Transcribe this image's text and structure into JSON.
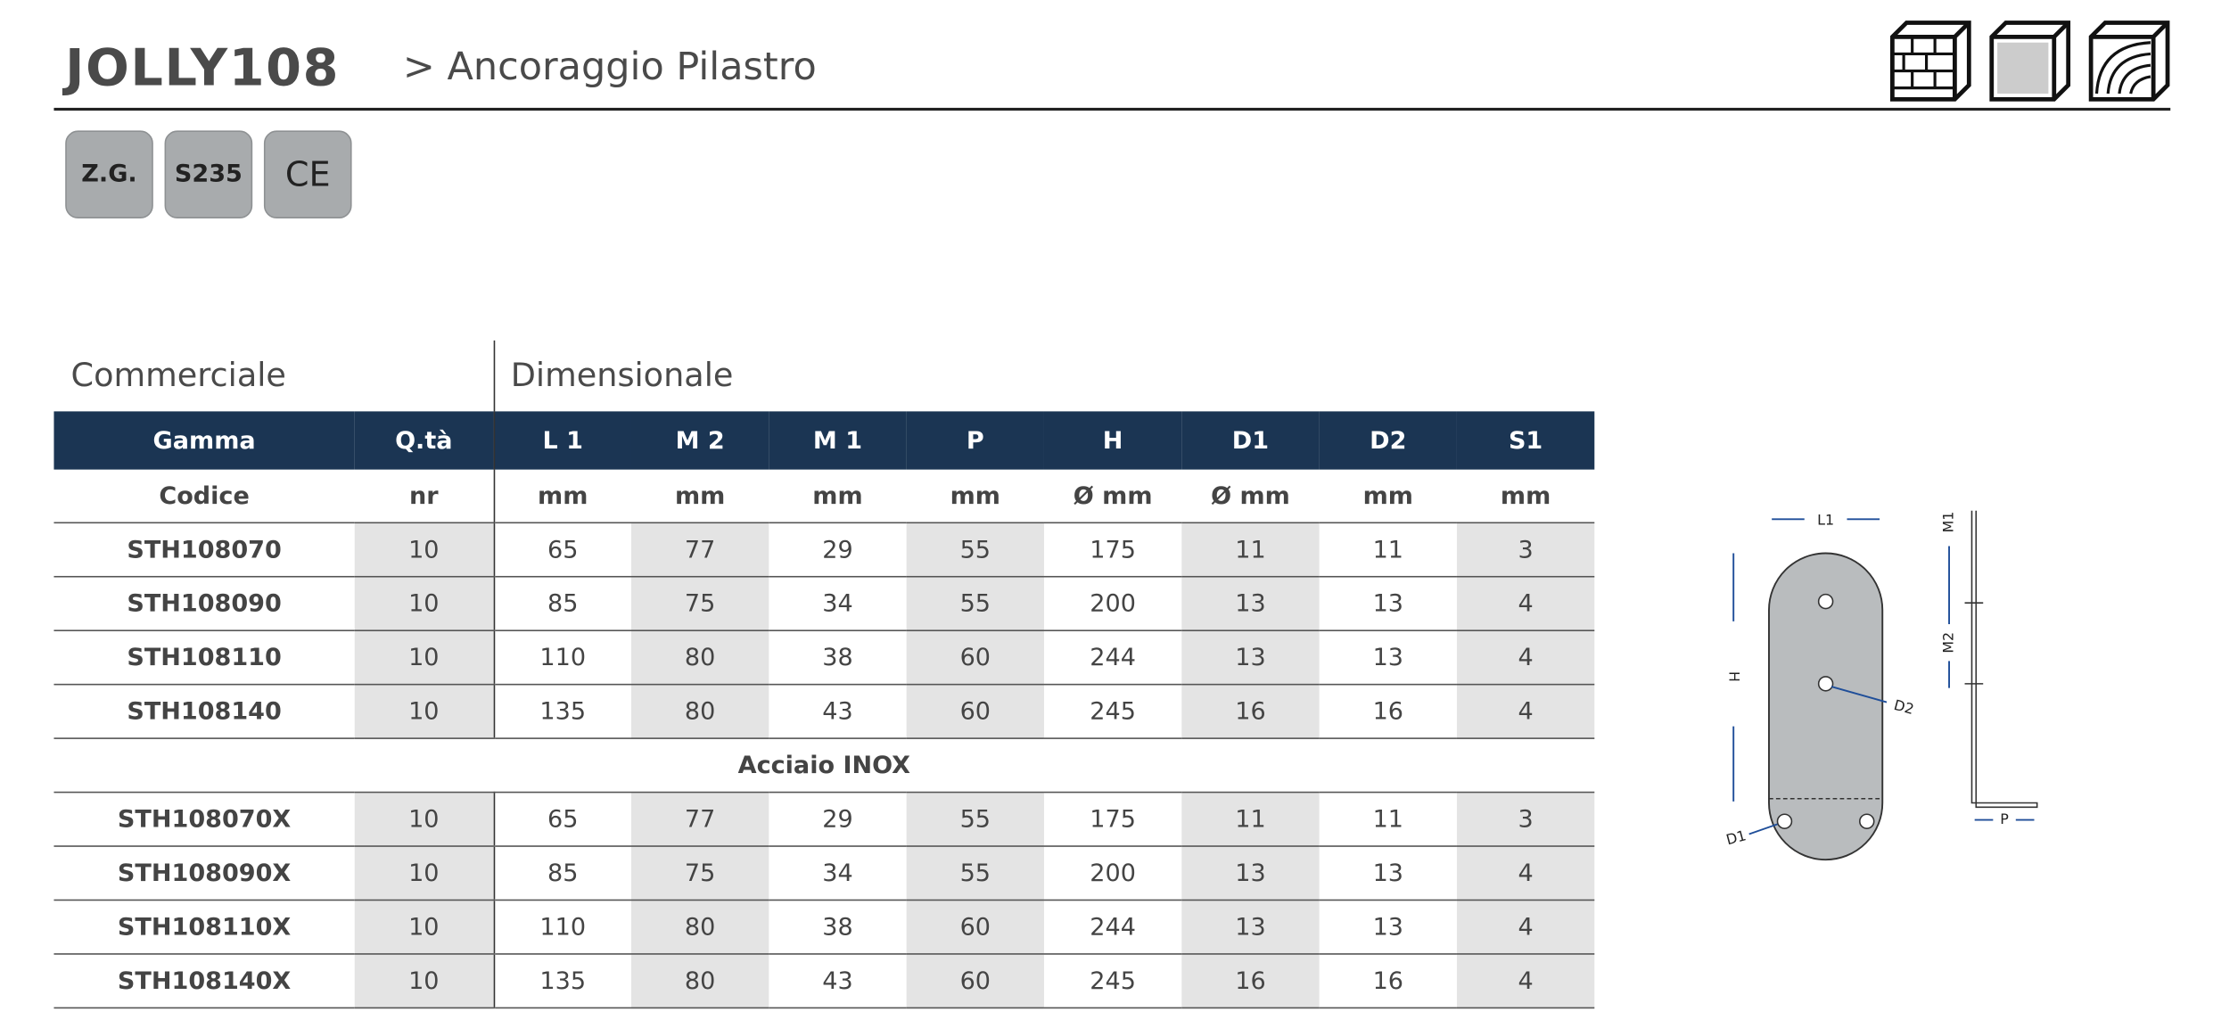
{
  "header": {
    "title": "JOLLY108",
    "subtitle": "> Ancoraggio Pilastro"
  },
  "badges": [
    "Z.G.",
    "S235",
    "CE"
  ],
  "table": {
    "groups": [
      "Commerciale",
      "Dimensionale"
    ],
    "columns": [
      "Gamma",
      "Q.tà",
      "L 1",
      "M 2",
      "M 1",
      "P",
      "H",
      "D1",
      "D2",
      "S1"
    ],
    "units": [
      "Codice",
      "nr",
      "mm",
      "mm",
      "mm",
      "mm",
      "Ø mm",
      "Ø mm",
      "mm",
      "mm"
    ],
    "rows": [
      [
        "STH108070",
        10,
        65,
        77,
        29,
        55,
        175,
        11,
        11,
        3
      ],
      [
        "STH108090",
        10,
        85,
        75,
        34,
        55,
        200,
        13,
        13,
        4
      ],
      [
        "STH108110",
        10,
        110,
        80,
        38,
        60,
        244,
        13,
        13,
        4
      ],
      [
        "STH108140",
        10,
        135,
        80,
        43,
        60,
        245,
        16,
        16,
        4
      ]
    ],
    "section": "Acciaio INOX",
    "rows_inox": [
      [
        "STH108070X",
        10,
        65,
        77,
        29,
        55,
        175,
        11,
        11,
        3
      ],
      [
        "STH108090X",
        10,
        85,
        75,
        34,
        55,
        200,
        13,
        13,
        4
      ],
      [
        "STH108110X",
        10,
        110,
        80,
        38,
        60,
        244,
        13,
        13,
        4
      ],
      [
        "STH108140X",
        10,
        135,
        80,
        43,
        60,
        245,
        16,
        16,
        4
      ]
    ]
  },
  "diagram": {
    "l1": "L1",
    "h": "H",
    "d2": "D2",
    "d1": "D1",
    "m1": "M1",
    "m2": "M2",
    "p": "P"
  }
}
